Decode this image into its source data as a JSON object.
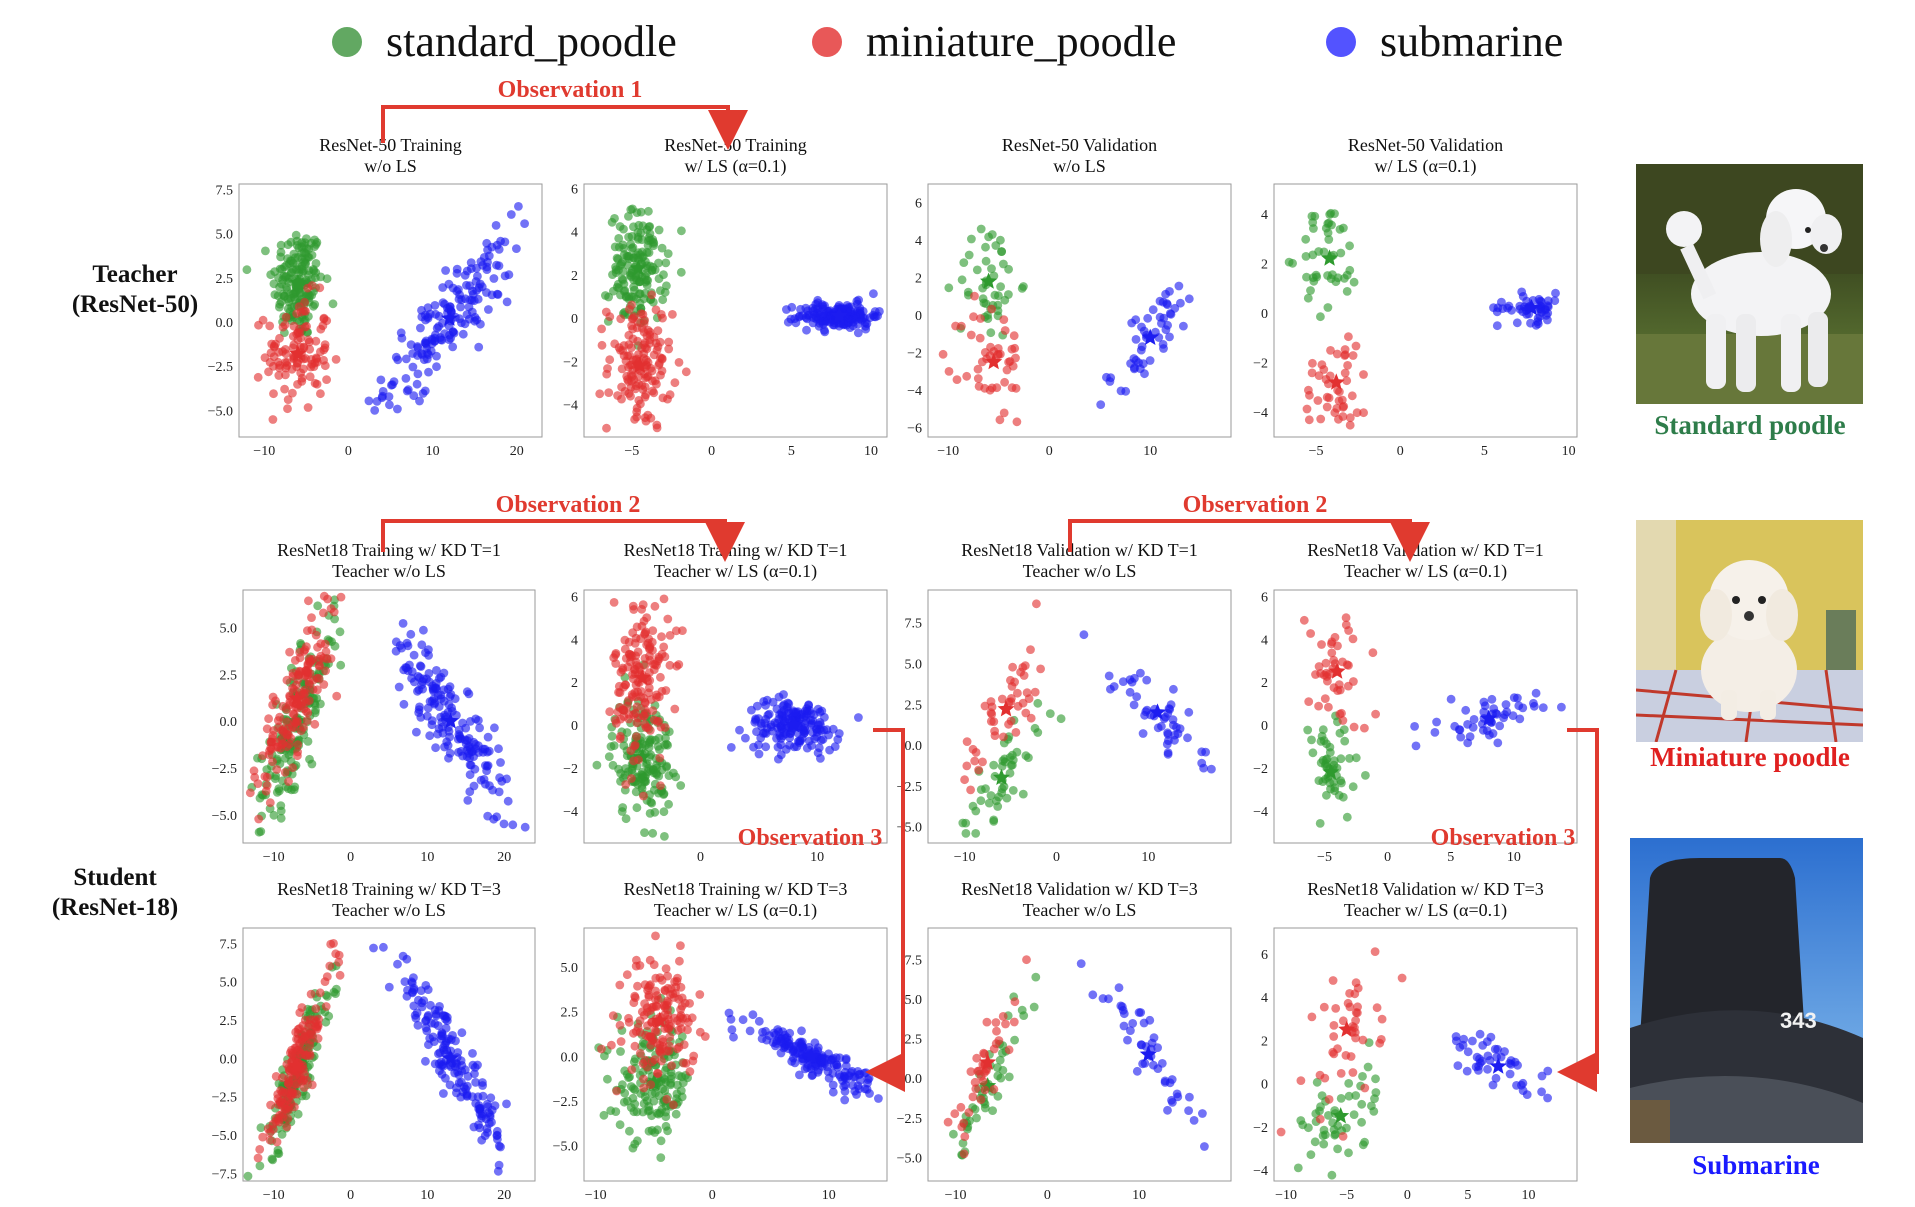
{
  "legend": {
    "items": [
      {
        "label": "standard_poodle",
        "color": "#2e8b2e"
      },
      {
        "label": "miniature_poodle",
        "color": "#e02020"
      },
      {
        "label": "submarine",
        "color": "#1a1aff"
      }
    ]
  },
  "row_labels": {
    "teacher": [
      "Teacher",
      "(ResNet-50)"
    ],
    "student": [
      "Student",
      "(ResNet-18)"
    ]
  },
  "observations": {
    "obs1": "Observation 1",
    "obs2a": "Observation 2",
    "obs2b": "Observation 2",
    "obs3a": "Observation 3",
    "obs3b": "Observation 3"
  },
  "images": [
    {
      "caption": "Standard poodle",
      "caption_color": "#2e7d4a",
      "icon": "white-poodle-photo"
    },
    {
      "caption": "Miniature poodle",
      "caption_color": "#e02020",
      "icon": "miniature-poodle-photo"
    },
    {
      "caption": "Submarine",
      "caption_color": "#1a1aff",
      "icon": "submarine-photo"
    }
  ],
  "colors": {
    "green": "#2e9a2e",
    "red": "#e23030",
    "blue": "#1c1cf0",
    "arrow": "#e03a2f"
  },
  "chart_data": [
    {
      "id": "t-train-nols",
      "type": "scatter",
      "title": [
        "ResNet-50 Training",
        "w/o LS"
      ],
      "xlim": [
        -13,
        23
      ],
      "ylim": [
        -6.5,
        7.8
      ],
      "xticks": [
        -10,
        0,
        10,
        20
      ],
      "yticks": [
        7.5,
        5.0,
        2.5,
        0.0,
        -2.5,
        -5.0
      ],
      "series": [
        {
          "name": "standard_poodle",
          "cx": -6,
          "cy": 2.2,
          "sx": 1.5,
          "sy": 1.6,
          "n": 170,
          "rho": 0
        },
        {
          "name": "miniature_poodle",
          "cx": -6,
          "cy": -1.8,
          "sx": 1.9,
          "sy": 1.6,
          "n": 110,
          "rho": 0
        },
        {
          "name": "submarine",
          "cx": 12,
          "cy": 0.2,
          "sx": 3.8,
          "sy": 2.2,
          "n": 170,
          "rho": 0.85
        }
      ]
    },
    {
      "id": "t-train-ls",
      "type": "scatter",
      "title": [
        "ResNet-50 Training",
        "w/ LS (α=0.1)"
      ],
      "xlim": [
        -8,
        11
      ],
      "ylim": [
        -5.5,
        6.2
      ],
      "xticks": [
        -5,
        0,
        5,
        10
      ],
      "yticks": [
        6,
        4,
        2,
        0,
        -2,
        -4
      ],
      "series": [
        {
          "name": "standard_poodle",
          "cx": -4.6,
          "cy": 2.3,
          "sx": 0.9,
          "sy": 1.3,
          "n": 160,
          "rho": 0
        },
        {
          "name": "miniature_poodle",
          "cx": -4.5,
          "cy": -2.2,
          "sx": 1.0,
          "sy": 1.5,
          "n": 150,
          "rho": 0
        },
        {
          "name": "submarine",
          "cx": 8.0,
          "cy": 0.1,
          "sx": 1.3,
          "sy": 0.3,
          "n": 170,
          "rho": 0
        }
      ]
    },
    {
      "id": "t-val-nols",
      "type": "scatter",
      "title": [
        "ResNet-50 Validation",
        "w/o LS"
      ],
      "xlim": [
        -12,
        18
      ],
      "ylim": [
        -6.5,
        7
      ],
      "xticks": [
        -10,
        0,
        10
      ],
      "yticks": [
        6,
        4,
        2,
        0,
        -2,
        -4,
        -6
      ],
      "series": [
        {
          "name": "standard_poodle",
          "cx": -6,
          "cy": 1.8,
          "sx": 1.5,
          "sy": 1.6,
          "n": 45,
          "rho": 0
        },
        {
          "name": "miniature_poodle",
          "cx": -5.5,
          "cy": -2.5,
          "sx": 1.6,
          "sy": 1.7,
          "n": 45,
          "rho": 0
        },
        {
          "name": "submarine",
          "cx": 10,
          "cy": -1.2,
          "sx": 3.0,
          "sy": 2.2,
          "n": 50,
          "rho": 0.9
        }
      ]
    },
    {
      "id": "t-val-ls",
      "type": "scatter",
      "title": [
        "ResNet-50 Validation",
        "w/ LS (α=0.1)"
      ],
      "xlim": [
        -7.5,
        10.5
      ],
      "ylim": [
        -5,
        5.2
      ],
      "xticks": [
        -5,
        0,
        5,
        10
      ],
      "yticks": [
        4,
        2,
        0,
        -2,
        -4
      ],
      "series": [
        {
          "name": "standard_poodle",
          "cx": -4.2,
          "cy": 2.2,
          "sx": 0.9,
          "sy": 1.1,
          "n": 45,
          "rho": 0
        },
        {
          "name": "miniature_poodle",
          "cx": -3.8,
          "cy": -2.8,
          "sx": 1.0,
          "sy": 1.1,
          "n": 45,
          "rho": 0
        },
        {
          "name": "submarine",
          "cx": 7.8,
          "cy": 0.2,
          "sx": 1.0,
          "sy": 0.3,
          "n": 50,
          "rho": 0
        }
      ]
    },
    {
      "id": "s-t1-train-nols",
      "type": "scatter",
      "title": [
        "ResNet18 Training w/ KD T=1",
        "Teacher w/o LS"
      ],
      "xlim": [
        -14,
        24
      ],
      "ylim": [
        -6.5,
        7
      ],
      "xticks": [
        -10,
        0,
        10,
        20
      ],
      "yticks": [
        5.0,
        2.5,
        0.0,
        -2.5,
        -5.0
      ],
      "series": [
        {
          "name": "standard_poodle",
          "cx": -7,
          "cy": 0,
          "sx": 2.5,
          "sy": 2.6,
          "n": 170,
          "rho": 0.82
        },
        {
          "name": "miniature_poodle",
          "cx": -7,
          "cy": 1.2,
          "sx": 2.5,
          "sy": 2.6,
          "n": 160,
          "rho": 0.82
        },
        {
          "name": "submarine",
          "cx": 13,
          "cy": 0,
          "sx": 3.8,
          "sy": 2.5,
          "n": 170,
          "rho": -0.88
        }
      ]
    },
    {
      "id": "s-t1-train-ls",
      "type": "scatter",
      "title": [
        "ResNet18 Training w/ KD T=1",
        "Teacher w/ LS (α=0.1)"
      ],
      "xlim": [
        -10,
        16
      ],
      "ylim": [
        -5.5,
        6.3
      ],
      "xticks": [
        0,
        10
      ],
      "yticks": [
        6,
        4,
        2,
        0,
        -2,
        -4
      ],
      "series": [
        {
          "name": "standard_poodle",
          "cx": -5,
          "cy": -1.5,
          "sx": 1.3,
          "sy": 1.5,
          "n": 160,
          "rho": 0
        },
        {
          "name": "miniature_poodle",
          "cx": -5,
          "cy": 2.2,
          "sx": 1.2,
          "sy": 1.9,
          "n": 160,
          "rho": 0
        },
        {
          "name": "submarine",
          "cx": 8,
          "cy": 0,
          "sx": 2.0,
          "sy": 0.6,
          "n": 170,
          "rho": 0
        }
      ]
    },
    {
      "id": "s-t1-val-nols",
      "type": "scatter",
      "title": [
        "ResNet18 Validation w/ KD T=1",
        "Teacher w/o LS"
      ],
      "xlim": [
        -14,
        19
      ],
      "ylim": [
        -6,
        9.5
      ],
      "xticks": [
        -10,
        0,
        10
      ],
      "yticks": [
        7.5,
        5.0,
        2.5,
        0.0,
        -2.5,
        -5.0
      ],
      "series": [
        {
          "name": "standard_poodle",
          "cx": -6,
          "cy": -2,
          "sx": 2.5,
          "sy": 2.3,
          "n": 50,
          "rho": 0.8
        },
        {
          "name": "miniature_poodle",
          "cx": -5.5,
          "cy": 2.2,
          "sx": 2.5,
          "sy": 2.3,
          "n": 45,
          "rho": 0.8
        },
        {
          "name": "submarine",
          "cx": 11,
          "cy": 2,
          "sx": 2.5,
          "sy": 1.6,
          "n": 50,
          "rho": -0.85
        }
      ]
    },
    {
      "id": "s-t1-val-ls",
      "type": "scatter",
      "title": [
        "ResNet18 Validation w/ KD T=1",
        "Teacher w/ LS (α=0.1)"
      ],
      "xlim": [
        -9,
        15
      ],
      "ylim": [
        -5.5,
        6.3
      ],
      "xticks": [
        -5,
        0,
        5,
        10
      ],
      "yticks": [
        6,
        4,
        2,
        0,
        -2,
        -4
      ],
      "series": [
        {
          "name": "standard_poodle",
          "cx": -4.5,
          "cy": -2.2,
          "sx": 1.2,
          "sy": 1.3,
          "n": 50,
          "rho": 0
        },
        {
          "name": "miniature_poodle",
          "cx": -4,
          "cy": 2.5,
          "sx": 1.2,
          "sy": 1.5,
          "n": 45,
          "rho": 0
        },
        {
          "name": "submarine",
          "cx": 8,
          "cy": 0.3,
          "sx": 1.9,
          "sy": 0.5,
          "n": 50,
          "rho": 0.3
        }
      ]
    },
    {
      "id": "s-t3-train-nols",
      "type": "scatter",
      "title": [
        "ResNet18 Training w/ KD T=3",
        "Teacher w/o LS"
      ],
      "xlim": [
        -14,
        24
      ],
      "ylim": [
        -8,
        8.5
      ],
      "xticks": [
        -10,
        0,
        10,
        20
      ],
      "yticks": [
        7.5,
        5.0,
        2.5,
        0.0,
        -2.5,
        -5.0,
        -7.5
      ],
      "series": [
        {
          "name": "standard_poodle",
          "cx": -7,
          "cy": -1,
          "sx": 2.3,
          "sy": 3.0,
          "n": 170,
          "rho": 0.92
        },
        {
          "name": "miniature_poodle",
          "cx": -7,
          "cy": -0.5,
          "sx": 2.3,
          "sy": 3.0,
          "n": 150,
          "rho": 0.92
        },
        {
          "name": "submarine",
          "cx": 13,
          "cy": 0,
          "sx": 4.0,
          "sy": 3.5,
          "n": 170,
          "rho": -0.95
        }
      ]
    },
    {
      "id": "s-t3-train-ls",
      "type": "scatter",
      "title": [
        "ResNet18 Training w/ KD T=3",
        "Teacher w/ LS (α=0.1)"
      ],
      "xlim": [
        -11,
        15
      ],
      "ylim": [
        -7,
        7.2
      ],
      "xticks": [
        -10,
        0,
        10
      ],
      "yticks": [
        5.0,
        2.5,
        0.0,
        -2.5,
        -5.0
      ],
      "series": [
        {
          "name": "standard_poodle",
          "cx": -5,
          "cy": -1.5,
          "sx": 1.6,
          "sy": 1.6,
          "n": 160,
          "rho": 0
        },
        {
          "name": "miniature_poodle",
          "cx": -4.5,
          "cy": 2,
          "sx": 1.5,
          "sy": 1.7,
          "n": 160,
          "rho": 0
        },
        {
          "name": "submarine",
          "cx": 8.5,
          "cy": 0,
          "sx": 2.8,
          "sy": 1.0,
          "n": 170,
          "rho": -0.9
        }
      ]
    },
    {
      "id": "s-t3-val-nols",
      "type": "scatter",
      "title": [
        "ResNet18 Validation w/ KD T=3",
        "Teacher w/o LS"
      ],
      "xlim": [
        -13,
        20
      ],
      "ylim": [
        -6.5,
        9.5
      ],
      "xticks": [
        -10,
        0,
        10
      ],
      "yticks": [
        7.5,
        5.0,
        2.5,
        0.0,
        -2.5,
        -5.0
      ],
      "series": [
        {
          "name": "standard_poodle",
          "cx": -6.5,
          "cy": -0.5,
          "sx": 2.0,
          "sy": 2.8,
          "n": 50,
          "rho": 0.9
        },
        {
          "name": "miniature_poodle",
          "cx": -6.5,
          "cy": 1,
          "sx": 2.0,
          "sy": 2.5,
          "n": 40,
          "rho": 0.9
        },
        {
          "name": "submarine",
          "cx": 11,
          "cy": 1.5,
          "sx": 3.0,
          "sy": 2.5,
          "n": 45,
          "rho": -0.9
        }
      ]
    },
    {
      "id": "s-t3-val-ls",
      "type": "scatter",
      "title": [
        "ResNet18 Validation w/ KD T=3",
        "Teacher w/ LS (α=0.1)"
      ],
      "xlim": [
        -11,
        14
      ],
      "ylim": [
        -4.5,
        7.2
      ],
      "xticks": [
        -10,
        -5,
        0,
        5,
        10
      ],
      "yticks": [
        6,
        4,
        2,
        0,
        -2,
        -4
      ],
      "series": [
        {
          "name": "standard_poodle",
          "cx": -5.5,
          "cy": -1.5,
          "sx": 1.5,
          "sy": 1.5,
          "n": 50,
          "rho": 0.5
        },
        {
          "name": "miniature_poodle",
          "cx": -5,
          "cy": 2.5,
          "sx": 1.5,
          "sy": 1.9,
          "n": 45,
          "rho": 0.3
        },
        {
          "name": "submarine",
          "cx": 7.5,
          "cy": 0.8,
          "sx": 2.0,
          "sy": 0.8,
          "n": 45,
          "rho": -0.7
        }
      ]
    }
  ]
}
